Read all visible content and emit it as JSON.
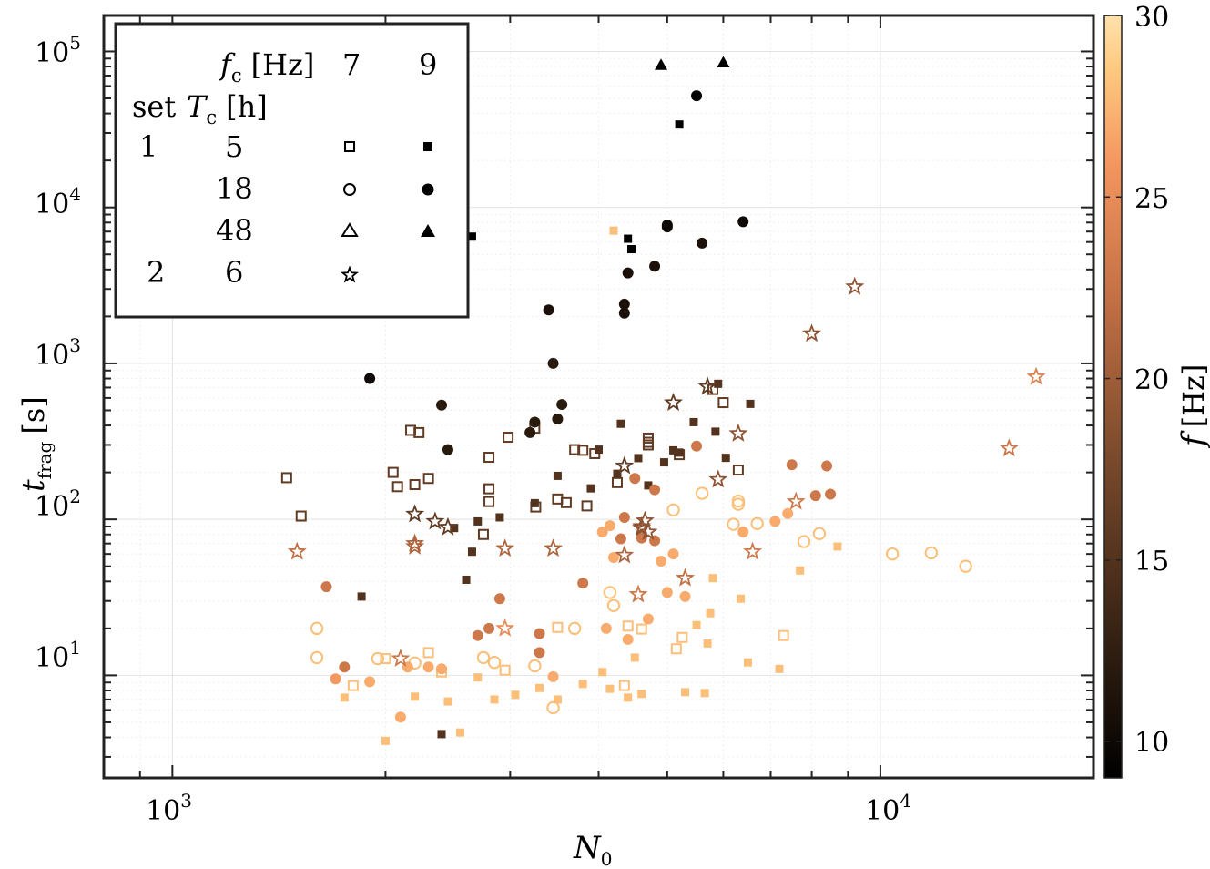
{
  "chart_data": {
    "type": "scatter",
    "xscale": "log",
    "yscale": "log",
    "xlim": [
      800,
      20000
    ],
    "ylim": [
      2.2,
      170000
    ],
    "xticks": [
      1000,
      10000
    ],
    "yticks": [
      10,
      100,
      1000,
      10000,
      100000
    ],
    "xlabel": {
      "symbol": "N",
      "sub": "0"
    },
    "ylabel": {
      "symbol": "t",
      "sub": "frag",
      "unit": "[s]"
    },
    "colorbar": {
      "label": {
        "symbol": "f",
        "unit": "[Hz]"
      },
      "range": [
        9,
        30
      ],
      "ticks": [
        10,
        15,
        20,
        25,
        30
      ],
      "colors": [
        "#000000",
        "#3a2414",
        "#7a4a2c",
        "#c06e44",
        "#f2945e",
        "#ffc980",
        "#ffe1ac"
      ]
    },
    "legend": {
      "header_fc": "f",
      "header_fc_sub": "c",
      "header_fc_unit": "[Hz]",
      "fc_values": [
        "7",
        "9"
      ],
      "header_set": "set",
      "header_tc": "T",
      "header_tc_sub": "c",
      "header_tc_unit": "[h]",
      "rows": [
        {
          "set": "1",
          "tc": "5",
          "open": "square",
          "filled": "square"
        },
        {
          "set": "",
          "tc": "18",
          "open": "circle",
          "filled": "circle"
        },
        {
          "set": "",
          "tc": "48",
          "open": "triangle",
          "filled": "triangle"
        },
        {
          "set": "2",
          "tc": "6",
          "open": "star",
          "filled": ""
        }
      ]
    },
    "series": [
      {
        "name": "set 1, Tc=5h, fc=7Hz",
        "marker": "square",
        "filled": false,
        "points": [
          [
            1450,
            185,
            16
          ],
          [
            1520,
            105,
            16
          ],
          [
            2050,
            200,
            16
          ],
          [
            2080,
            162,
            16
          ],
          [
            2170,
            372,
            16
          ],
          [
            2230,
            360,
            16
          ],
          [
            2200,
            167,
            16
          ],
          [
            2300,
            183,
            16
          ],
          [
            2750,
            80,
            16
          ],
          [
            2800,
            250,
            16
          ],
          [
            2800,
            157,
            16
          ],
          [
            2980,
            336,
            16
          ],
          [
            2800,
            130,
            16
          ],
          [
            3250,
            384,
            16
          ],
          [
            3500,
            135,
            16
          ],
          [
            3600,
            128,
            16
          ],
          [
            3700,
            280,
            16
          ],
          [
            3800,
            277,
            16
          ],
          [
            3950,
            264,
            16
          ],
          [
            4250,
            172,
            16
          ],
          [
            4700,
            332,
            16
          ],
          [
            4700,
            300,
            16
          ],
          [
            5200,
            260,
            16
          ],
          [
            5800,
            680,
            16
          ],
          [
            6000,
            560,
            16
          ],
          [
            6300,
            207,
            16
          ],
          [
            3850,
            122,
            16
          ],
          [
            3260,
            120,
            16
          ],
          [
            4700,
            312,
            16
          ],
          [
            2300,
            14,
            28
          ],
          [
            2000,
            12.8,
            28
          ],
          [
            1800,
            8.6,
            28
          ],
          [
            2400,
            10.5,
            28
          ],
          [
            2950,
            10.8,
            28
          ],
          [
            3500,
            20.3,
            28
          ],
          [
            4600,
            19.8,
            28
          ],
          [
            4400,
            20.7,
            28
          ],
          [
            4350,
            8.6,
            28
          ],
          [
            5150,
            14.8,
            28
          ],
          [
            5250,
            17.5,
            28
          ],
          [
            7300,
            18,
            28
          ]
        ]
      },
      {
        "name": "set 1, Tc=5h, fc=9Hz",
        "marker": "square",
        "filled": true,
        "points": [
          [
            1850,
            32,
            15
          ],
          [
            2400,
            4.2,
            15
          ],
          [
            2600,
            41,
            15
          ],
          [
            2500,
            88,
            15
          ],
          [
            2650,
            62,
            15
          ],
          [
            2700,
            97,
            15
          ],
          [
            2900,
            103,
            15
          ],
          [
            3250,
            127,
            15
          ],
          [
            3500,
            190,
            15
          ],
          [
            3900,
            158,
            15
          ],
          [
            4000,
            280,
            15
          ],
          [
            4250,
            196,
            15
          ],
          [
            4300,
            410,
            15
          ],
          [
            4550,
            247,
            15
          ],
          [
            4700,
            165,
            15
          ],
          [
            4950,
            232,
            15
          ],
          [
            5100,
            277,
            15
          ],
          [
            5200,
            268,
            15
          ],
          [
            5450,
            420,
            15
          ],
          [
            5850,
            365,
            15
          ],
          [
            5900,
            740,
            15
          ],
          [
            6050,
            248,
            15
          ],
          [
            6550,
            550,
            15
          ],
          [
            2650,
            6500,
            9
          ],
          [
            4400,
            6300,
            9
          ],
          [
            4450,
            5400,
            9
          ],
          [
            5200,
            34000,
            9
          ],
          [
            4200,
            7100,
            28
          ],
          [
            4500,
            13,
            28
          ],
          [
            4600,
            7.6,
            28
          ],
          [
            5300,
            7.8,
            28
          ],
          [
            5650,
            7.7,
            28
          ],
          [
            5750,
            25,
            28
          ],
          [
            5800,
            42,
            28
          ],
          [
            5500,
            21,
            28
          ],
          [
            2000,
            3.8,
            28
          ],
          [
            1750,
            7.2,
            28
          ],
          [
            2200,
            7.3,
            28
          ],
          [
            2450,
            6.8,
            28
          ],
          [
            2550,
            4.3,
            28
          ],
          [
            2700,
            9.7,
            28
          ],
          [
            2850,
            7,
            28
          ],
          [
            3050,
            7.5,
            28
          ],
          [
            3300,
            8.3,
            28
          ],
          [
            3500,
            7,
            28
          ],
          [
            3800,
            8.8,
            28
          ],
          [
            4050,
            10.5,
            28
          ],
          [
            4150,
            8.2,
            28
          ],
          [
            4400,
            7.2,
            28
          ],
          [
            5700,
            16,
            28
          ],
          [
            6350,
            31,
            28
          ],
          [
            6500,
            12.1,
            28
          ],
          [
            7200,
            11,
            28
          ],
          [
            7700,
            47,
            28
          ],
          [
            8700,
            67,
            28
          ]
        ]
      },
      {
        "name": "set 1, Tc=18h, fc=7Hz",
        "marker": "circle",
        "filled": false,
        "points": [
          [
            1600,
            20,
            28
          ],
          [
            1600,
            13,
            28
          ],
          [
            1950,
            12.8,
            28
          ],
          [
            2200,
            12,
            28
          ],
          [
            2750,
            13,
            28
          ],
          [
            2850,
            12.1,
            28
          ],
          [
            3250,
            11.5,
            28
          ],
          [
            3450,
            6.2,
            28
          ],
          [
            3700,
            20,
            28
          ],
          [
            4150,
            34,
            28
          ],
          [
            4200,
            28,
            28
          ],
          [
            5100,
            115,
            28
          ],
          [
            5600,
            147,
            28
          ],
          [
            6300,
            125,
            28
          ],
          [
            6300,
            131,
            28
          ],
          [
            6200,
            93,
            28
          ],
          [
            6700,
            94,
            28
          ],
          [
            7800,
            72,
            28
          ],
          [
            8200,
            81,
            28
          ],
          [
            10400,
            60,
            28
          ],
          [
            11800,
            61,
            28
          ],
          [
            13200,
            50,
            28
          ]
        ]
      },
      {
        "name": "set 1, Tc=18h, fc=9Hz",
        "marker": "circle",
        "filled": true,
        "points": [
          [
            1900,
            800,
            10
          ],
          [
            2400,
            540,
            12
          ],
          [
            2450,
            280,
            12
          ],
          [
            3200,
            360,
            12
          ],
          [
            3250,
            420,
            12
          ],
          [
            3400,
            2200,
            11
          ],
          [
            3450,
            1000,
            12
          ],
          [
            3500,
            440,
            12
          ],
          [
            3550,
            545,
            12
          ],
          [
            4350,
            2400,
            11
          ],
          [
            4350,
            2100,
            11
          ],
          [
            4400,
            3800,
            11
          ],
          [
            4800,
            4200,
            11
          ],
          [
            5000,
            7700,
            10
          ],
          [
            5000,
            7500,
            10
          ],
          [
            5600,
            5900,
            11
          ],
          [
            6400,
            8100,
            10
          ],
          [
            5500,
            52000,
            9
          ],
          [
            1650,
            37,
            23
          ],
          [
            1700,
            9.5,
            26
          ],
          [
            1750,
            11.3,
            23
          ],
          [
            1900,
            9.1,
            27
          ],
          [
            2100,
            5.4,
            27
          ],
          [
            2150,
            11.3,
            27
          ],
          [
            2300,
            11.3,
            27
          ],
          [
            2400,
            11,
            27
          ],
          [
            2700,
            18,
            23
          ],
          [
            2800,
            20,
            23
          ],
          [
            2900,
            31,
            23
          ],
          [
            3300,
            14,
            23
          ],
          [
            3300,
            18.5,
            23
          ],
          [
            3450,
            9.8,
            27
          ],
          [
            3800,
            39,
            23
          ],
          [
            4100,
            20,
            27
          ],
          [
            4300,
            75,
            23
          ],
          [
            4350,
            103,
            23
          ],
          [
            4400,
            17,
            27
          ],
          [
            4500,
            183,
            23
          ],
          [
            4600,
            76,
            23
          ],
          [
            4700,
            23,
            27
          ],
          [
            4800,
            73,
            23
          ],
          [
            4800,
            155,
            23
          ],
          [
            4900,
            54,
            27
          ],
          [
            5000,
            34,
            27
          ],
          [
            5100,
            60,
            27
          ],
          [
            5300,
            32,
            27
          ],
          [
            5500,
            295,
            23
          ],
          [
            6400,
            83,
            27
          ],
          [
            7100,
            97,
            27
          ],
          [
            7400,
            109,
            27
          ],
          [
            7500,
            224,
            23
          ],
          [
            8100,
            142,
            23
          ],
          [
            8400,
            220,
            23
          ],
          [
            8500,
            145,
            23
          ],
          [
            4150,
            91,
            27
          ],
          [
            4050,
            83,
            27
          ],
          [
            4200,
            57,
            27
          ]
        ]
      },
      {
        "name": "set 1, Tc=48h, fc=9Hz",
        "marker": "triangle",
        "filled": true,
        "points": [
          [
            4900,
            82000,
            9
          ],
          [
            6000,
            85000,
            9
          ]
        ]
      },
      {
        "name": "set 2, Tc=6h, fc=7Hz",
        "marker": "star",
        "filled": false,
        "points": [
          [
            1500,
            62,
            22
          ],
          [
            2100,
            12.8,
            23
          ],
          [
            2200,
            108,
            16
          ],
          [
            2200,
            67,
            21
          ],
          [
            2200,
            70,
            21
          ],
          [
            2350,
            97,
            16
          ],
          [
            2450,
            89,
            16
          ],
          [
            2950,
            65,
            21
          ],
          [
            2950,
            20,
            25
          ],
          [
            3450,
            65,
            21
          ],
          [
            4350,
            220,
            16
          ],
          [
            4350,
            59,
            21
          ],
          [
            4550,
            33,
            23
          ],
          [
            4600,
            90,
            19
          ],
          [
            4600,
            88,
            19
          ],
          [
            4650,
            98,
            19
          ],
          [
            4700,
            83,
            19
          ],
          [
            5100,
            560,
            16
          ],
          [
            5300,
            42,
            22
          ],
          [
            5700,
            710,
            16
          ],
          [
            5900,
            180,
            19
          ],
          [
            6300,
            355,
            19
          ],
          [
            6600,
            62,
            23
          ],
          [
            7600,
            130,
            23
          ],
          [
            8000,
            1550,
            19
          ],
          [
            9200,
            3100,
            19
          ],
          [
            15200,
            285,
            23
          ],
          [
            16600,
            820,
            24
          ]
        ]
      }
    ]
  }
}
